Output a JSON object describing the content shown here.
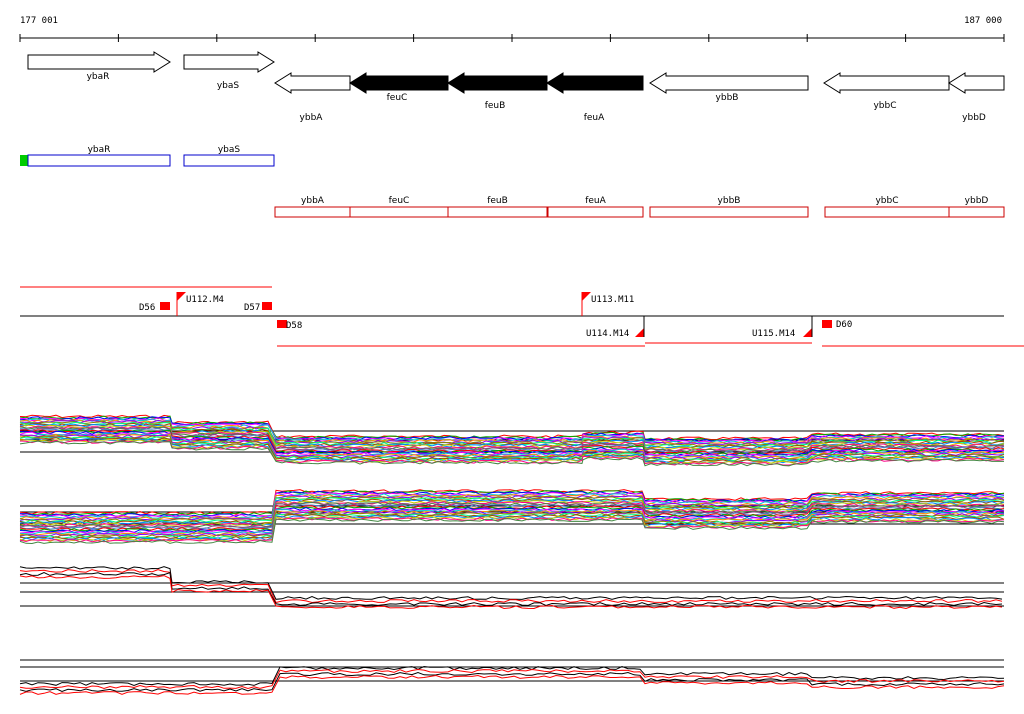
{
  "ruler": {
    "start_label": "177 001",
    "end_label": "187 000"
  },
  "genes": [
    {
      "name": "ybaR",
      "strand": "+",
      "filled": false
    },
    {
      "name": "ybaS",
      "strand": "+",
      "filled": false
    },
    {
      "name": "ybbA",
      "strand": "-",
      "filled": false
    },
    {
      "name": "feuC",
      "strand": "-",
      "filled": true
    },
    {
      "name": "feuB",
      "strand": "-",
      "filled": true
    },
    {
      "name": "feuA",
      "strand": "-",
      "filled": true
    },
    {
      "name": "ybbB",
      "strand": "-",
      "filled": false
    },
    {
      "name": "ybbC",
      "strand": "-",
      "filled": false
    },
    {
      "name": "ybbD",
      "strand": "-",
      "filled": false
    }
  ],
  "plus_strand_boxes": [
    {
      "name": "ybaR"
    },
    {
      "name": "ybaS"
    }
  ],
  "minus_strand_boxes": [
    {
      "name": "ybbA"
    },
    {
      "name": "feuC"
    },
    {
      "name": "feuB"
    },
    {
      "name": "feuA"
    },
    {
      "name": "ybbB"
    },
    {
      "name": "ybbC"
    },
    {
      "name": "ybbD"
    }
  ],
  "segments": [
    {
      "label": "D56"
    },
    {
      "label": "U112.M4"
    },
    {
      "label": "D57"
    },
    {
      "label": "D58"
    },
    {
      "label": "U113.M11"
    },
    {
      "label": "U114.M14"
    },
    {
      "label": "U115.M14"
    },
    {
      "label": "D60"
    }
  ],
  "colors": {
    "plus_box": "#0000cc",
    "minus_box": "#cc0000",
    "marker": "#ff0000",
    "start_marker": "#00cc00",
    "condition_lines": [
      "#ff0000",
      "#00aa00",
      "#0000ff",
      "#ff00ff",
      "#00cccc",
      "#ff8800",
      "#8800ff",
      "#888800",
      "#00ff88",
      "#aa4400",
      "#0088ff",
      "#cccc00",
      "#ff0088",
      "#448844",
      "#884488",
      "#4488cc"
    ]
  }
}
